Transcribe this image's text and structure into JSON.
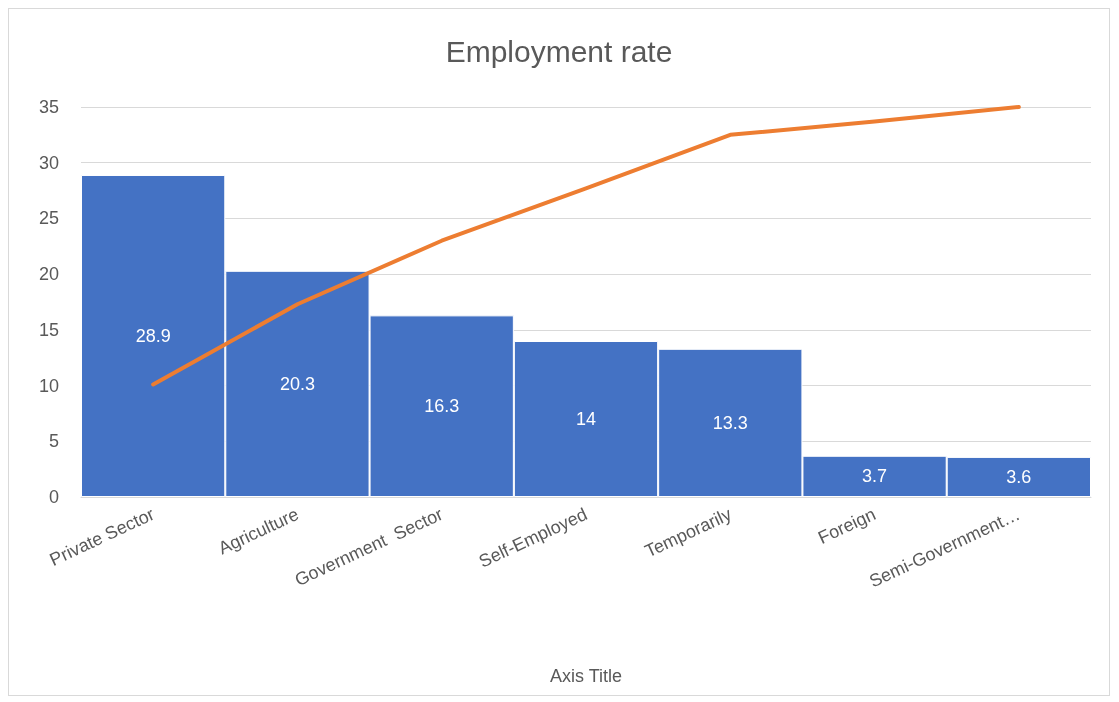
{
  "chart_data": {
    "type": "bar",
    "title": "Employment rate",
    "xlabel": "Axis Title",
    "categories": [
      "Private Sector",
      "Agriculture",
      "Government  Sector",
      "Self-Employed",
      "Temporarily",
      "Foreign",
      "Semi-Government…"
    ],
    "series": [
      {
        "color": "#4472c4",
        "values": [
          28.9,
          20.3,
          16.3,
          14,
          13.3,
          3.7,
          3.6
        ],
        "data_labels": true
      },
      {
        "type": "line",
        "color": "#ed7d31",
        "values": [
          10.1,
          17.3,
          23.0,
          27.7,
          32.5,
          33.7,
          35.0
        ],
        "marker": "none",
        "line_style": "solid"
      }
    ],
    "ylim": [
      0,
      35
    ],
    "yticks": [
      0,
      5,
      10,
      15,
      20,
      25,
      30,
      35
    ],
    "grid": "y"
  }
}
